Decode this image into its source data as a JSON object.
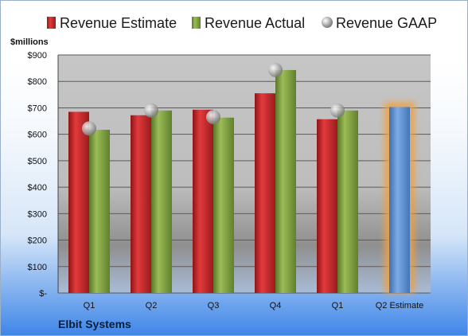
{
  "chart_data": {
    "type": "bar",
    "title": "",
    "unit_label": "$millions",
    "company": "Elbit Systems",
    "categories": [
      "Q1",
      "Q2",
      "Q3",
      "Q4",
      "Q1",
      "Q2 Estimate"
    ],
    "y_ticks": [
      "$-",
      "$100",
      "$200",
      "$300",
      "$400",
      "$500",
      "$600",
      "$700",
      "$800",
      "$900"
    ],
    "ylim": [
      0,
      900
    ],
    "grid": true,
    "legend_position": "top",
    "series": [
      {
        "name": "Revenue Estimate",
        "kind": "bar",
        "color": "#c0282a",
        "values": [
          685,
          672,
          693,
          755,
          657,
          null
        ]
      },
      {
        "name": "Revenue Actual",
        "kind": "bar",
        "color": "#7a9a3c",
        "values": [
          617,
          690,
          663,
          843,
          690,
          null
        ]
      },
      {
        "name": "Revenue GAAP",
        "kind": "marker",
        "color": "#a8a8a8",
        "values": [
          622,
          690,
          665,
          843,
          690,
          null
        ]
      }
    ],
    "estimate_bar": {
      "category": "Q2 Estimate",
      "value": 703,
      "color": "#5b8fd2",
      "glow": "#f0a040"
    }
  }
}
